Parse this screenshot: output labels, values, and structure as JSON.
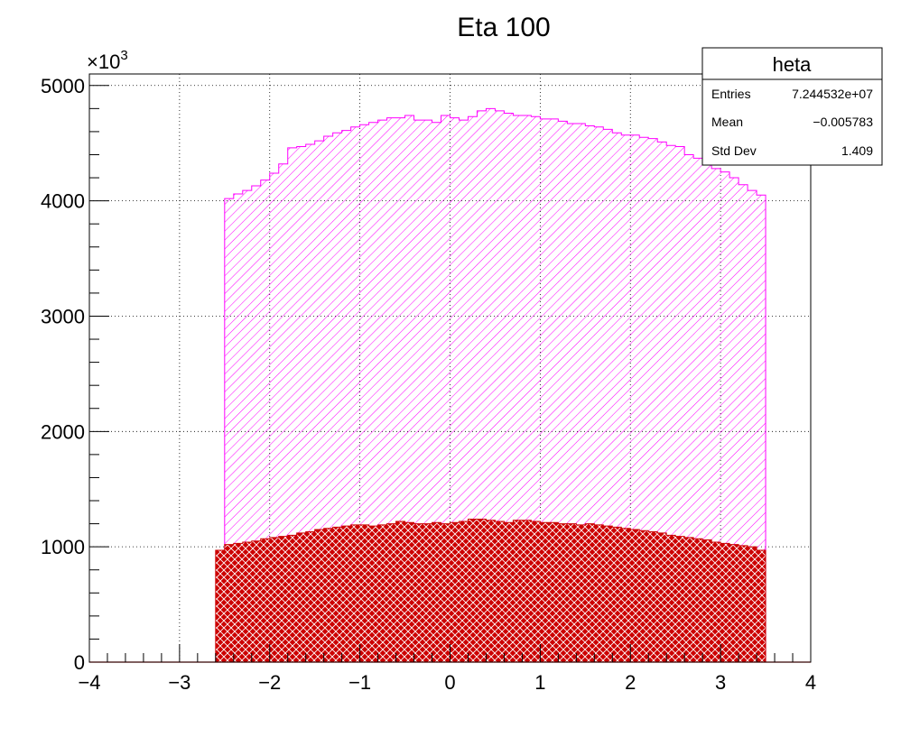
{
  "chart_data": {
    "type": "bar",
    "title": "Eta 100",
    "y_multiplier": "×10",
    "y_multiplier_exp": "3",
    "xlim": [
      -4,
      4
    ],
    "ylim": [
      0,
      5100
    ],
    "x_ticks": [
      -4,
      -3,
      -2,
      -1,
      0,
      1,
      2,
      3,
      4
    ],
    "x_tick_labels": [
      "−4",
      "−3",
      "−2",
      "−1",
      "0",
      "1",
      "2",
      "3",
      "4"
    ],
    "y_ticks": [
      0,
      1000,
      2000,
      3000,
      4000,
      5000
    ],
    "y_tick_labels": [
      "0",
      "1000",
      "2000",
      "3000",
      "4000",
      "5000"
    ],
    "grid": true,
    "series": [
      {
        "name": "heta",
        "color": "#ff00ff",
        "fill": "hatch-diagonal",
        "bin_start": -2.5,
        "bin_width": 0.1,
        "values": [
          4020,
          4060,
          4090,
          4130,
          4180,
          4240,
          4320,
          4460,
          4470,
          4490,
          4520,
          4560,
          4590,
          4610,
          4640,
          4660,
          4680,
          4700,
          4720,
          4720,
          4740,
          4700,
          4700,
          4680,
          4740,
          4720,
          4700,
          4730,
          4780,
          4800,
          4780,
          4760,
          4740,
          4740,
          4730,
          4710,
          4710,
          4690,
          4670,
          4670,
          4650,
          4640,
          4620,
          4590,
          4570,
          4570,
          4550,
          4540,
          4510,
          4480,
          4470,
          4400,
          4370,
          4330,
          4280,
          4250,
          4200,
          4140,
          4090,
          4050
        ]
      },
      {
        "name": "",
        "color": "#cc0000",
        "fill": "crosshatch",
        "bin_start": -2.6,
        "bin_width": 0.1,
        "values": [
          970,
          1020,
          1030,
          1040,
          1050,
          1070,
          1080,
          1090,
          1100,
          1120,
          1130,
          1150,
          1160,
          1170,
          1180,
          1190,
          1190,
          1180,
          1190,
          1200,
          1220,
          1210,
          1200,
          1200,
          1210,
          1200,
          1210,
          1220,
          1240,
          1240,
          1230,
          1220,
          1210,
          1230,
          1230,
          1220,
          1210,
          1210,
          1200,
          1200,
          1190,
          1200,
          1190,
          1180,
          1170,
          1160,
          1150,
          1140,
          1130,
          1120,
          1100,
          1090,
          1080,
          1070,
          1060,
          1040,
          1030,
          1020,
          1010,
          1000,
          970
        ]
      }
    ]
  },
  "stats_box": {
    "title": "heta",
    "rows": [
      {
        "label": "Entries",
        "value": "7.244532e+07"
      },
      {
        "label": "Mean",
        "value": "−0.005783"
      },
      {
        "label": "Std Dev",
        "value": "1.409"
      }
    ]
  }
}
